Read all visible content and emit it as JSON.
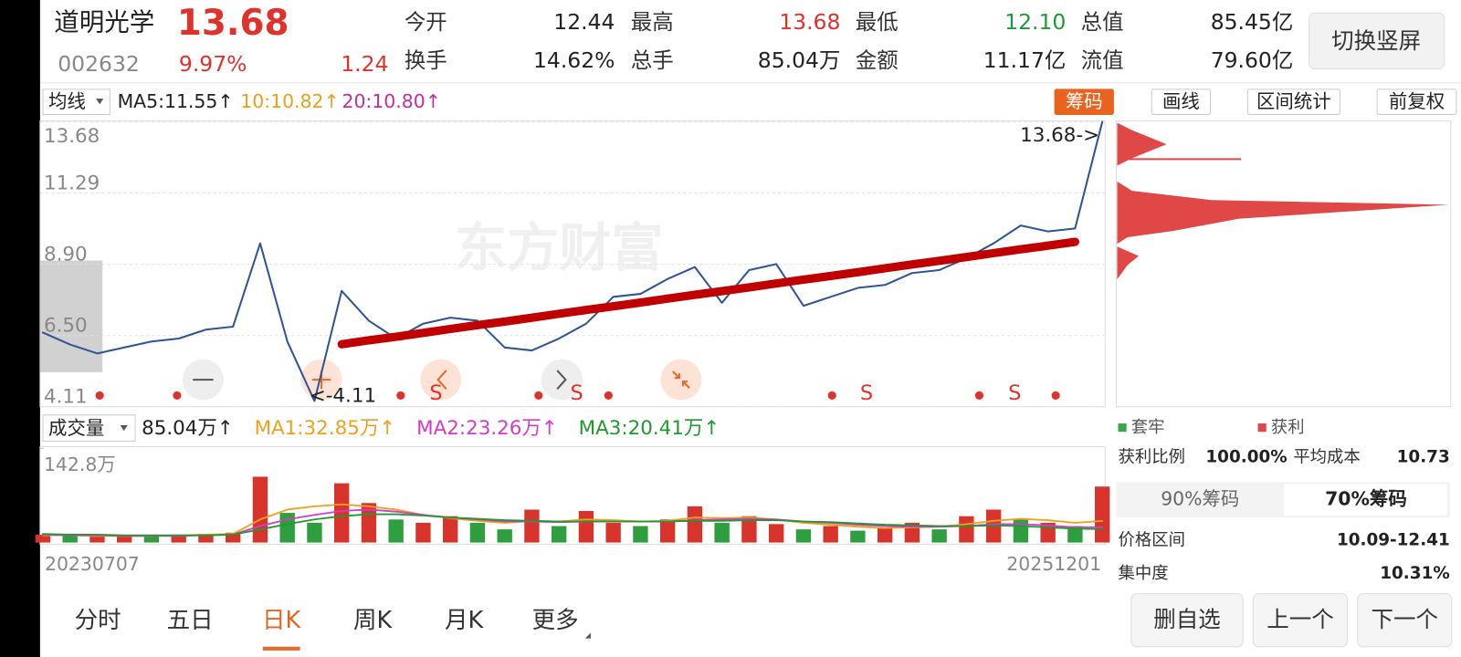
{
  "header": {
    "name": "道明光学",
    "price": "13.68",
    "code": "002632",
    "change_pct": "9.97%",
    "change": "1.24",
    "stats": [
      {
        "label": "今开",
        "value": "12.44",
        "color": "#222222"
      },
      {
        "label": "最高",
        "value": "13.68",
        "color": "#e0312a"
      },
      {
        "label": "最低",
        "value": "12.10",
        "color": "#1f9a3a"
      },
      {
        "label": "总值",
        "value": "85.45亿",
        "color": "#222222"
      },
      {
        "label": "换手",
        "value": "14.62%",
        "color": "#222222"
      },
      {
        "label": "总手",
        "value": "85.04万",
        "color": "#222222"
      },
      {
        "label": "金额",
        "value": "11.17亿",
        "color": "#222222"
      },
      {
        "label": "流值",
        "value": "79.60亿",
        "color": "#222222"
      }
    ],
    "switch_button": "切换竖屏"
  },
  "toolbar": {
    "selector": "均线",
    "ma_legend": [
      {
        "text": "MA5:11.55↑",
        "color": "#222222"
      },
      {
        "text": "10:10.82↑",
        "color": "#e8a020"
      },
      {
        "text": "20:10.80↑",
        "color": "#c0309a"
      }
    ],
    "tabs": [
      "筹码",
      "画线",
      "区间统计",
      "前复权"
    ]
  },
  "chart_data": [
    {
      "type": "line",
      "watermark": "东方财富",
      "ylim": [
        4.11,
        13.68
      ],
      "yticks": [
        4.11,
        {
          "value": 6.5,
          "label": "6.50"
        },
        {
          "value": 8.9,
          "label": "8.90"
        },
        11.29,
        13.68
      ],
      "grid": true,
      "series": [
        {
          "color": "#2f5597",
          "values": [
            6.6,
            6.2,
            5.9,
            6.1,
            6.3,
            6.4,
            6.7,
            6.8,
            9.6,
            6.3,
            4.3,
            8.0,
            7.0,
            6.4,
            6.9,
            7.1,
            7.0,
            6.1,
            6.0,
            6.4,
            6.9,
            7.8,
            7.9,
            8.4,
            8.8,
            7.6,
            8.7,
            8.9,
            7.5,
            7.8,
            8.1,
            8.2,
            8.6,
            8.7,
            9.1,
            9.6,
            10.2,
            10.0,
            10.1,
            13.68
          ]
        }
      ],
      "trendline": {
        "color": "#c00000",
        "values": [
          null,
          null,
          null,
          null,
          null,
          null,
          null,
          null,
          null,
          null,
          null,
          6.21,
          6.34,
          6.46,
          6.59,
          6.72,
          6.85,
          6.97,
          7.1,
          7.23,
          7.36,
          7.48,
          7.61,
          7.74,
          7.87,
          7.99,
          8.12,
          8.25,
          8.38,
          8.5,
          8.63,
          8.76,
          8.89,
          9.01,
          9.14,
          9.27,
          9.4,
          9.52,
          9.65,
          null
        ]
      },
      "annotations": [
        "13.68->",
        "<-4.11"
      ],
      "signals": [
        "S",
        "S",
        "S",
        "S"
      ]
    },
    {
      "type": "bar",
      "selector": "成交量",
      "current": "85.04万↑",
      "ylim": [
        0,
        142.8
      ],
      "yticks": [
        {
          "value": 142.8,
          "label": "142.8万"
        }
      ],
      "categories": [
        "20230707",
        null,
        null,
        null,
        null,
        null,
        null,
        null,
        null,
        null,
        null,
        null,
        null,
        null,
        null,
        null,
        null,
        null,
        null,
        null,
        null,
        null,
        null,
        null,
        null,
        null,
        null,
        null,
        null,
        null,
        null,
        null,
        null,
        null,
        null,
        null,
        null,
        null,
        null,
        "20251201"
      ],
      "values": [
        12,
        10,
        9,
        11,
        10,
        12,
        13,
        15,
        100,
        45,
        30,
        90,
        60,
        35,
        30,
        40,
        30,
        20,
        50,
        25,
        48,
        30,
        25,
        35,
        55,
        30,
        40,
        28,
        20,
        25,
        18,
        22,
        30,
        20,
        40,
        50,
        35,
        30,
        25,
        85.04
      ],
      "colors": [
        "#d9342b",
        "#2e9e3e",
        "#d9342b",
        "#d9342b",
        "#2e9e3e",
        "#d9342b",
        "#d9342b",
        "#d9342b",
        "#d9342b",
        "#2e9e3e",
        "#2e9e3e",
        "#d9342b",
        "#d9342b",
        "#2e9e3e",
        "#d9342b",
        "#d9342b",
        "#2e9e3e",
        "#2e9e3e",
        "#d9342b",
        "#2e9e3e",
        "#d9342b",
        "#d9342b",
        "#2e9e3e",
        "#d9342b",
        "#d9342b",
        "#2e9e3e",
        "#d9342b",
        "#d9342b",
        "#2e9e3e",
        "#d9342b",
        "#2e9e3e",
        "#d9342b",
        "#d9342b",
        "#2e9e3e",
        "#d9342b",
        "#d9342b",
        "#2e9e3e",
        "#d9342b",
        "#2e9e3e",
        "#d9342b"
      ],
      "series": [
        {
          "name": "MA1:32.85万↑",
          "color": "#f0a020",
          "values": [
            11,
            11,
            10,
            10,
            10,
            11,
            12,
            13,
            35,
            50,
            55,
            58,
            55,
            50,
            42,
            37,
            33,
            30,
            33,
            32,
            35,
            34,
            32,
            33,
            38,
            37,
            38,
            35,
            30,
            27,
            24,
            22,
            23,
            24,
            28,
            33,
            36,
            34,
            30,
            32.85
          ]
        },
        {
          "name": "MA2:23.26万↑",
          "color": "#d23cc8",
          "values": [
            12,
            11,
            11,
            10,
            10,
            10,
            11,
            12,
            25,
            35,
            42,
            48,
            50,
            47,
            42,
            38,
            35,
            32,
            32,
            31,
            32,
            32,
            32,
            32,
            34,
            35,
            36,
            35,
            32,
            30,
            27,
            25,
            24,
            24,
            25,
            28,
            28,
            26,
            23,
            23.26
          ]
        },
        {
          "name": "MA3:20.41万↑",
          "color": "#1e9a2e",
          "values": [
            13,
            12,
            12,
            11,
            11,
            11,
            11,
            12,
            20,
            28,
            35,
            40,
            43,
            43,
            41,
            38,
            36,
            34,
            33,
            32,
            32,
            32,
            32,
            32,
            33,
            33,
            34,
            34,
            32,
            31,
            29,
            27,
            26,
            25,
            25,
            26,
            25,
            23,
            21,
            20.41
          ]
        }
      ]
    }
  ],
  "chips": {
    "legend": [
      {
        "text": "套牢",
        "color": "#3aa84a"
      },
      {
        "text": "获利",
        "color": "#e04848"
      }
    ],
    "profit_ratio_label": "获利比例",
    "profit_ratio": "100.00%",
    "avg_cost_label": "平均成本",
    "avg_cost": "10.73",
    "tabs": [
      "90%筹码",
      "70%筹码"
    ],
    "range_label": "价格区间",
    "range": "10.09-12.41",
    "concentration_label": "集中度",
    "concentration": "10.31%"
  },
  "bottom": {
    "tabs": [
      "分时",
      "五日",
      "日K",
      "周K",
      "月K",
      "更多"
    ],
    "buttons": [
      "删自选",
      "上一个",
      "下一个"
    ]
  }
}
